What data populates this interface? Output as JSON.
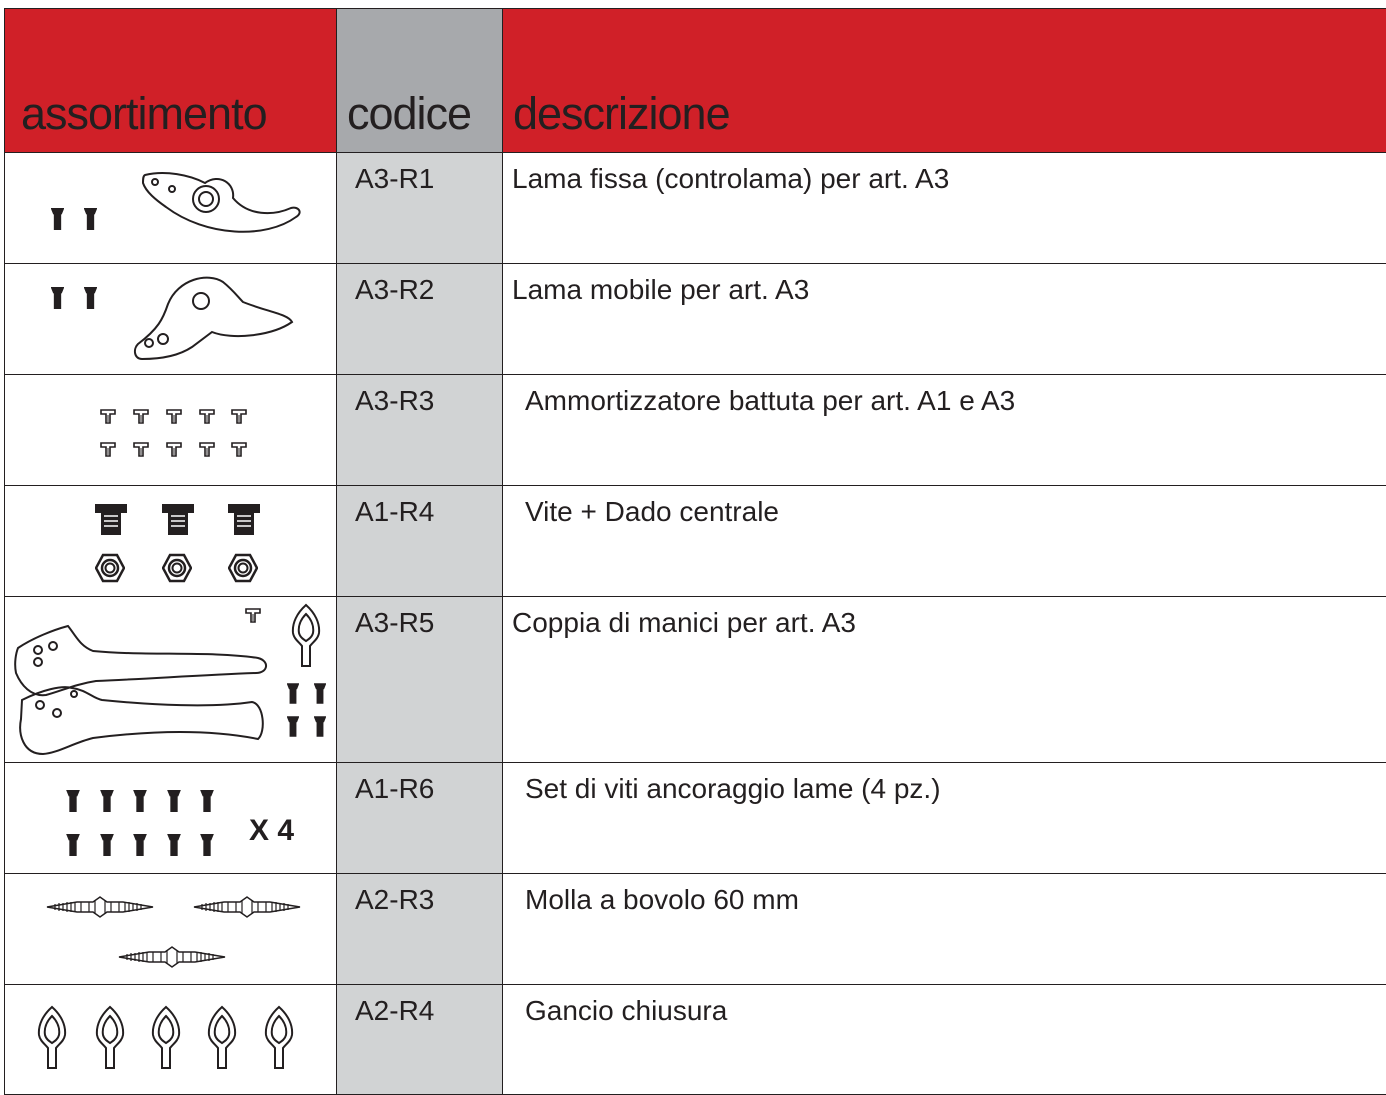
{
  "header": {
    "assortimento": "assortimento",
    "codice": "codice",
    "descrizione": "descrizione"
  },
  "table": {
    "rows": [
      {
        "code": "A3-R1",
        "description": "Lama fissa (controlama) per art. A3"
      },
      {
        "code": "A3-R2",
        "description": "Lama mobile per art. A3"
      },
      {
        "code": "A3-R3",
        "description": "Ammortizzatore battuta per art. A1 e A3"
      },
      {
        "code": "A1-R4",
        "description": "Vite + Dado centrale"
      },
      {
        "code": "A3-R5",
        "description": "Coppia di manici per art. A3"
      },
      {
        "code": "A1-R6",
        "description": "Set di viti ancoraggio lame (4 pz.)",
        "note": "X 4"
      },
      {
        "code": "A2-R3",
        "description": "Molla a bovolo 60 mm"
      },
      {
        "code": "A2-R4",
        "description": "Gancio chiusura"
      }
    ]
  }
}
